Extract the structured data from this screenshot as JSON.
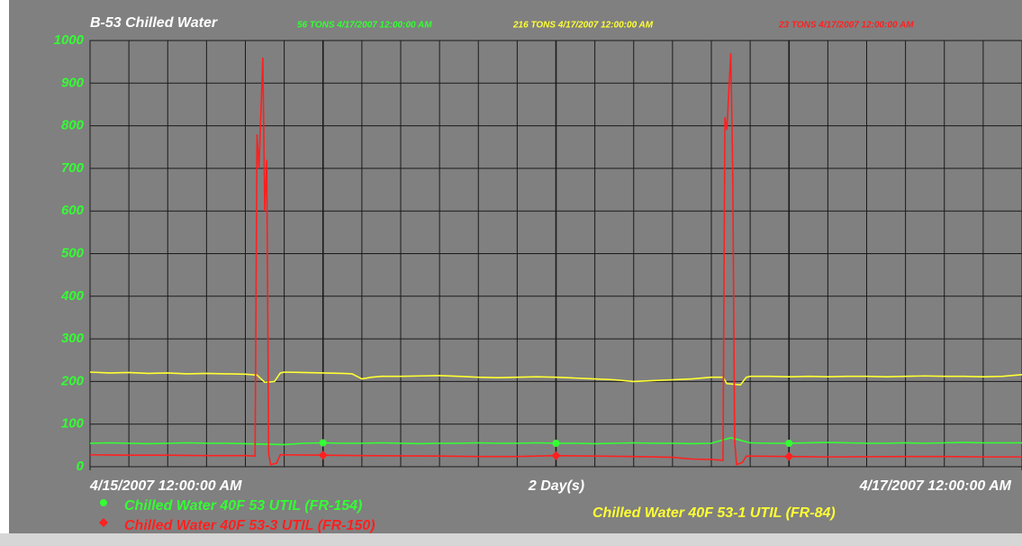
{
  "chart_data": {
    "type": "line",
    "title": "B-53 Chilled Water",
    "xlabel": "2 Day(s)",
    "xlim": [
      "2007-04-15T00:00:00",
      "2007-04-17T00:00:00"
    ],
    "xticks": [
      {
        "value": "2007-04-15T00:00:00",
        "label": "4/15/2007 12:00:00 AM"
      },
      {
        "value": "2007-04-17T00:00:00",
        "label": "4/17/2007 12:00:00 AM"
      }
    ],
    "ylim": [
      0,
      1000
    ],
    "yticks": [
      0,
      100,
      200,
      300,
      400,
      500,
      600,
      700,
      800,
      900,
      1000
    ],
    "grid": true,
    "series": [
      {
        "name": "Chilled Water 40F 53 UTIL (FR-154)",
        "color": "#33ff33",
        "marker": "circle",
        "current": "56 TONS 4/17/2007 12:00:00 AM",
        "x": [
          "2007-04-15T00:00",
          "2007-04-15T01:00",
          "2007-04-15T02:00",
          "2007-04-15T03:00",
          "2007-04-15T04:00",
          "2007-04-15T05:00",
          "2007-04-15T06:00",
          "2007-04-15T07:00",
          "2007-04-15T08:00",
          "2007-04-15T09:00",
          "2007-04-15T10:00",
          "2007-04-15T11:00",
          "2007-04-15T12:00",
          "2007-04-15T13:00",
          "2007-04-15T14:00",
          "2007-04-15T15:00",
          "2007-04-15T16:00",
          "2007-04-15T17:00",
          "2007-04-15T18:00",
          "2007-04-15T19:00",
          "2007-04-15T20:00",
          "2007-04-15T21:00",
          "2007-04-15T22:00",
          "2007-04-15T23:00",
          "2007-04-16T00:00",
          "2007-04-16T01:00",
          "2007-04-16T02:00",
          "2007-04-16T03:00",
          "2007-04-16T04:00",
          "2007-04-16T05:00",
          "2007-04-16T06:00",
          "2007-04-16T07:00",
          "2007-04-16T08:00",
          "2007-04-16T09:00",
          "2007-04-16T10:00",
          "2007-04-16T11:00",
          "2007-04-16T12:00",
          "2007-04-16T13:00",
          "2007-04-16T14:00",
          "2007-04-16T15:00",
          "2007-04-16T16:00",
          "2007-04-16T17:00",
          "2007-04-16T18:00",
          "2007-04-16T19:00",
          "2007-04-16T20:00",
          "2007-04-16T21:00",
          "2007-04-16T22:00",
          "2007-04-16T23:00",
          "2007-04-17T00:00"
        ],
        "values": [
          55,
          56,
          55,
          54,
          55,
          56,
          55,
          55,
          54,
          53,
          52,
          55,
          56,
          55,
          55,
          56,
          55,
          54,
          55,
          55,
          56,
          55,
          55,
          56,
          55,
          55,
          54,
          55,
          56,
          55,
          55,
          54,
          55,
          68,
          56,
          55,
          55,
          56,
          57,
          56,
          55,
          55,
          56,
          55,
          56,
          57,
          56,
          56,
          56
        ]
      },
      {
        "name": "Chilled Water 40F 53-1 UTIL (FR-84)",
        "color": "#ffff33",
        "marker": "none",
        "current": "216 TONS 4/17/2007 12:00:00 AM",
        "x": [
          "2007-04-15T00:00",
          "2007-04-15T01:00",
          "2007-04-15T02:00",
          "2007-04-15T03:00",
          "2007-04-15T04:00",
          "2007-04-15T05:00",
          "2007-04-15T06:00",
          "2007-04-15T07:00",
          "2007-04-15T08:00",
          "2007-04-15T08:36",
          "2007-04-15T09:00",
          "2007-04-15T09:30",
          "2007-04-15T09:48",
          "2007-04-15T10:00",
          "2007-04-15T11:00",
          "2007-04-15T12:00",
          "2007-04-15T13:00",
          "2007-04-15T13:30",
          "2007-04-15T14:00",
          "2007-04-15T14:30",
          "2007-04-15T15:00",
          "2007-04-15T16:00",
          "2007-04-15T17:00",
          "2007-04-15T18:00",
          "2007-04-15T19:00",
          "2007-04-15T20:00",
          "2007-04-15T21:00",
          "2007-04-15T22:00",
          "2007-04-15T23:00",
          "2007-04-16T00:00",
          "2007-04-16T01:00",
          "2007-04-16T02:00",
          "2007-04-16T03:00",
          "2007-04-16T04:00",
          "2007-04-16T05:00",
          "2007-04-16T06:00",
          "2007-04-16T07:00",
          "2007-04-16T08:00",
          "2007-04-16T08:36",
          "2007-04-16T08:48",
          "2007-04-16T09:30",
          "2007-04-16T09:48",
          "2007-04-16T10:00",
          "2007-04-16T11:00",
          "2007-04-16T12:00",
          "2007-04-16T13:00",
          "2007-04-16T14:00",
          "2007-04-16T15:00",
          "2007-04-16T16:00",
          "2007-04-16T17:00",
          "2007-04-16T18:00",
          "2007-04-16T19:00",
          "2007-04-16T20:00",
          "2007-04-16T21:00",
          "2007-04-16T22:00",
          "2007-04-16T23:00",
          "2007-04-17T00:00"
        ],
        "values": [
          222,
          220,
          221,
          219,
          220,
          218,
          219,
          218,
          217,
          215,
          198,
          200,
          220,
          222,
          221,
          220,
          219,
          218,
          206,
          210,
          212,
          212,
          213,
          214,
          212,
          210,
          209,
          210,
          211,
          210,
          208,
          206,
          204,
          200,
          202,
          204,
          206,
          210,
          210,
          195,
          192,
          210,
          212,
          212,
          211,
          212,
          211,
          212,
          212,
          211,
          212,
          213,
          212,
          212,
          211,
          212,
          216
        ]
      },
      {
        "name": "Chilled Water 40F 53-3 UTIL (FR-150)",
        "color": "#ff2020",
        "marker": "diamond",
        "current": "23 TONS 4/17/2007 12:00:00 AM",
        "x": [
          "2007-04-15T00:00",
          "2007-04-15T02:00",
          "2007-04-15T04:00",
          "2007-04-15T06:00",
          "2007-04-15T08:00",
          "2007-04-15T08:30",
          "2007-04-15T08:36",
          "2007-04-15T08:42",
          "2007-04-15T08:54",
          "2007-04-15T09:00",
          "2007-04-15T09:06",
          "2007-04-15T09:12",
          "2007-04-15T09:18",
          "2007-04-15T09:36",
          "2007-04-15T09:48",
          "2007-04-15T12:00",
          "2007-04-15T14:00",
          "2007-04-15T18:00",
          "2007-04-15T20:00",
          "2007-04-15T22:00",
          "2007-04-16T00:00",
          "2007-04-16T02:00",
          "2007-04-16T04:00",
          "2007-04-16T06:00",
          "2007-04-16T07:00",
          "2007-04-16T08:00",
          "2007-04-16T08:36",
          "2007-04-16T08:42",
          "2007-04-16T08:48",
          "2007-04-16T09:00",
          "2007-04-16T09:06",
          "2007-04-16T09:12",
          "2007-04-16T09:18",
          "2007-04-16T09:36",
          "2007-04-16T09:48",
          "2007-04-16T12:00",
          "2007-04-16T14:00",
          "2007-04-16T18:00",
          "2007-04-16T20:00",
          "2007-04-16T22:00",
          "2007-04-17T00:00"
        ],
        "values": [
          28,
          27,
          27,
          26,
          26,
          25,
          780,
          700,
          960,
          600,
          720,
          30,
          5,
          8,
          28,
          27,
          26,
          25,
          24,
          24,
          26,
          25,
          24,
          22,
          18,
          17,
          15,
          820,
          790,
          970,
          700,
          60,
          5,
          10,
          25,
          24,
          23,
          24,
          24,
          23,
          23
        ]
      }
    ]
  }
}
